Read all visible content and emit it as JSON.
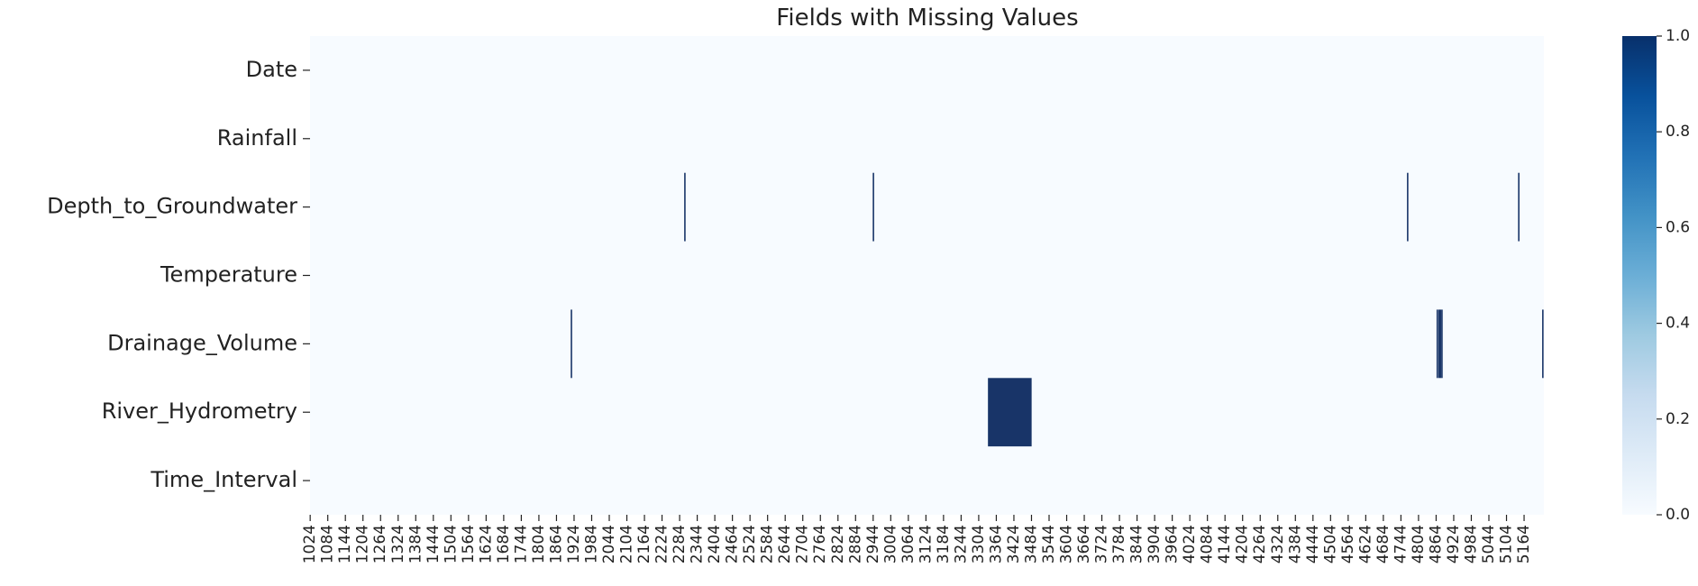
{
  "chart_data": {
    "type": "heatmap",
    "title": "Fields with Missing Values",
    "rows": [
      "Date",
      "Rainfall",
      "Depth_to_Groundwater",
      "Temperature",
      "Drainage_Volume",
      "River_Hydrometry",
      "Time_Interval"
    ],
    "x_range": [
      1024,
      5232
    ],
    "x_tick_labels": [
      "1024",
      "1084",
      "1144",
      "1204",
      "1264",
      "1324",
      "1384",
      "1444",
      "1504",
      "1564",
      "1624",
      "1684",
      "1744",
      "1804",
      "1864",
      "1924",
      "1984",
      "2044",
      "2104",
      "2164",
      "2224",
      "2284",
      "2344",
      "2404",
      "2464",
      "2524",
      "2584",
      "2644",
      "2704",
      "2764",
      "2824",
      "2884",
      "2944",
      "3004",
      "3064",
      "3124",
      "3184",
      "3244",
      "3304",
      "3364",
      "3424",
      "3484",
      "3544",
      "3604",
      "3664",
      "3724",
      "3784",
      "3844",
      "3904",
      "3964",
      "4024",
      "4084",
      "4144",
      "4204",
      "4264",
      "4324",
      "4384",
      "4444",
      "4504",
      "4564",
      "4624",
      "4684",
      "4744",
      "4804",
      "4864",
      "4924",
      "4984",
      "5044",
      "5104",
      "5164"
    ],
    "value_range": [
      0.0,
      1.0
    ],
    "missing": [
      {
        "row": "Depth_to_Groundwater",
        "start": 2300,
        "end": 2301
      },
      {
        "row": "Depth_to_Groundwater",
        "start": 2943,
        "end": 2945
      },
      {
        "row": "Depth_to_Groundwater",
        "start": 4765,
        "end": 4766
      },
      {
        "row": "Depth_to_Groundwater",
        "start": 5144,
        "end": 5145
      },
      {
        "row": "Drainage_Volume",
        "start": 1913,
        "end": 1914
      },
      {
        "row": "Drainage_Volume",
        "start": 4866,
        "end": 4868
      },
      {
        "row": "Drainage_Volume",
        "start": 4872,
        "end": 4873
      },
      {
        "row": "Drainage_Volume",
        "start": 4877,
        "end": 4878
      },
      {
        "row": "Drainage_Volume",
        "start": 4882,
        "end": 4884
      },
      {
        "row": "Drainage_Volume",
        "start": 5226,
        "end": 5227
      },
      {
        "row": "River_Hydrometry",
        "start": 3336,
        "end": 3485
      }
    ],
    "colorbar_ticks": [
      "0.0",
      "0.2",
      "0.4",
      "0.6",
      "0.8",
      "1.0"
    ],
    "colors": {
      "low": "#f7fbff",
      "high": "#08306b",
      "missing_cell": "#183468"
    }
  }
}
